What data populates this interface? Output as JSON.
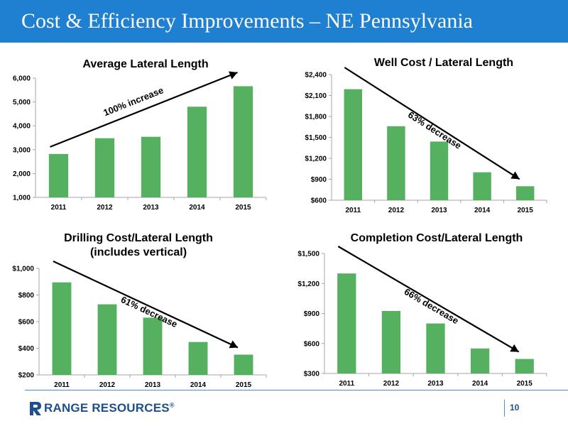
{
  "slide": {
    "title": "Cost & Efficiency Improvements – NE Pennsylvania",
    "page_number": "10",
    "logo_text": "RANGE RESOURCES",
    "logo_mark": "®"
  },
  "colors": {
    "header": "#1f7fd0",
    "bar": "#55b05f",
    "axis": "#a6a6a6",
    "footer_rule": "#4a8fd6",
    "logo": "#1d4f8c"
  },
  "chart_data": [
    {
      "type": "bar",
      "title": "Average Lateral Length",
      "categories": [
        "2011",
        "2012",
        "2013",
        "2014",
        "2015"
      ],
      "values": [
        2820,
        3480,
        3540,
        4800,
        5660
      ],
      "ylim": [
        1000,
        6000
      ],
      "yticks": [
        1000,
        2000,
        3000,
        4000,
        5000,
        6000
      ],
      "ytick_labels": [
        "1,000",
        "2,000",
        "3,000",
        "4,000",
        "5,000",
        "6,000"
      ],
      "annotation": "100% increase",
      "trend": "up",
      "grid": false
    },
    {
      "type": "bar",
      "title": "Well Cost / Lateral Length",
      "categories": [
        "2011",
        "2012",
        "2013",
        "2014",
        "2015"
      ],
      "values": [
        2190,
        1660,
        1440,
        1000,
        800
      ],
      "ylim": [
        600,
        2400
      ],
      "yticks": [
        600,
        900,
        1200,
        1500,
        1800,
        2100,
        2400
      ],
      "ytick_labels": [
        "$600",
        "$900",
        "$1,200",
        "$1,500",
        "$1,800",
        "$2,100",
        "$2,400"
      ],
      "annotation": "63% decrease",
      "trend": "down",
      "grid": false
    },
    {
      "type": "bar",
      "title": "Drilling Cost/Lateral Length",
      "subtitle": "(includes vertical)",
      "categories": [
        "2011",
        "2012",
        "2013",
        "2014",
        "2015"
      ],
      "values": [
        895,
        730,
        630,
        447,
        352
      ],
      "ylim": [
        200,
        1000
      ],
      "yticks": [
        200,
        400,
        600,
        800,
        1000
      ],
      "ytick_labels": [
        "$200",
        "$400",
        "$600",
        "$800",
        "$1,000"
      ],
      "annotation": "61% decrease",
      "trend": "down",
      "grid": false
    },
    {
      "type": "bar",
      "title": "Completion Cost/Lateral Length",
      "categories": [
        "2011",
        "2012",
        "2013",
        "2014",
        "2015"
      ],
      "values": [
        1300,
        925,
        800,
        550,
        445
      ],
      "ylim": [
        300,
        1500
      ],
      "yticks": [
        300,
        600,
        900,
        1200,
        1500
      ],
      "ytick_labels": [
        "$300",
        "$600",
        "$900",
        "$1,200",
        "$1,500"
      ],
      "annotation": "66% decrease",
      "trend": "down",
      "grid": false
    }
  ]
}
